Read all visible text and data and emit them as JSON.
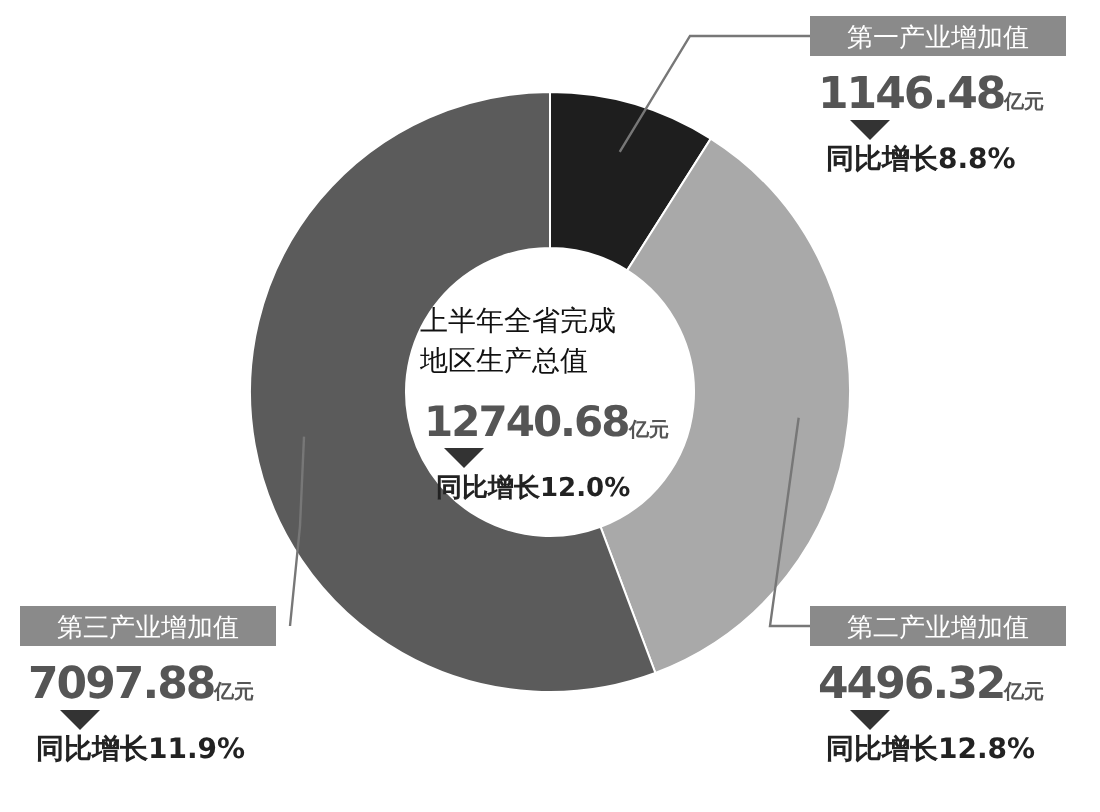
{
  "chart_data": {
    "type": "donut",
    "categories": [
      "第一产业增加值",
      "第二产业增加值",
      "第三产业增加值"
    ],
    "values": [
      1146.48,
      4496.32,
      7097.88
    ],
    "colors": [
      "#1e1e1e",
      "#a9a9a9",
      "#5b5b5b"
    ],
    "value_labels": [
      "1146.48亿元",
      "4496.32亿元",
      "7097.88亿元"
    ],
    "annotations": [
      "上半年全省完成地区生产总值",
      "12740.68亿元",
      "同比增长12.0%",
      "同比增长8.8%",
      "同比增长12.8%",
      "同比增长11.9%"
    ]
  }
}
